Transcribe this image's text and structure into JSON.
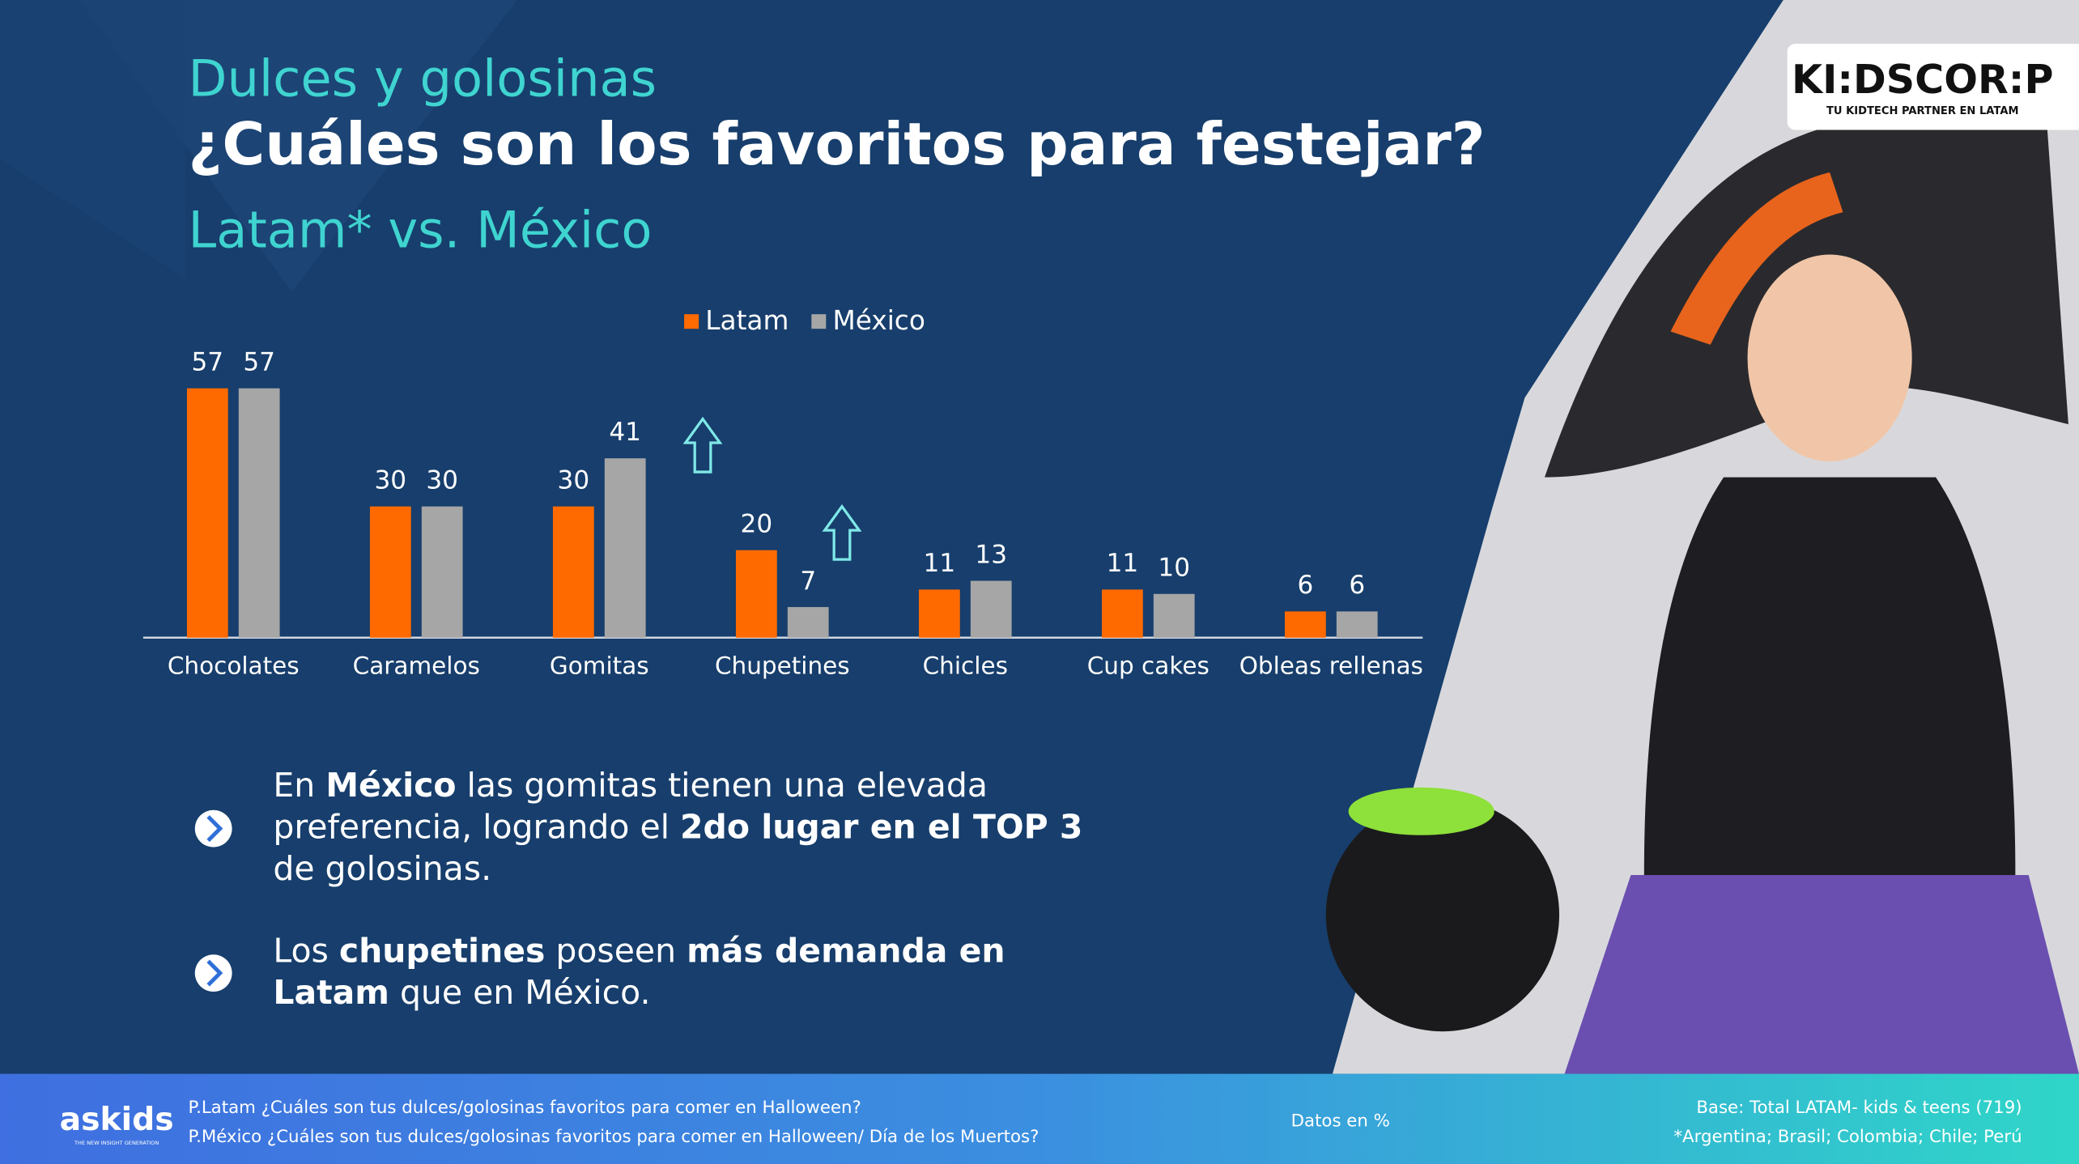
{
  "chart_data": {
    "type": "bar",
    "title": "Dulces y golosinas",
    "heading": "¿Cuáles son los favoritos para festejar?",
    "subtitle": "Latam* vs. México",
    "categories": [
      "Chocolates",
      "Caramelos",
      "Gomitas",
      "Chupetines",
      "Chicles",
      "Cup cakes",
      "Obleas rellenas"
    ],
    "series": [
      {
        "name": "Latam",
        "color": "#ff6a00",
        "values": [
          57,
          30,
          30,
          20,
          11,
          11,
          6
        ]
      },
      {
        "name": "México",
        "color": "#a6a6a6",
        "values": [
          57,
          30,
          41,
          7,
          13,
          10,
          6
        ]
      }
    ],
    "legend": "top"
  },
  "bullets": [
    [
      [
        {
          "text": "En ",
          "bold": false
        },
        {
          "text": "México",
          "bold": true
        },
        {
          "text": " las gomitas tienen una elevada",
          "bold": false
        }
      ],
      [
        {
          "text": "preferencia, logrando el ",
          "bold": false
        },
        {
          "text": "2do lugar en el TOP 3",
          "bold": true
        }
      ],
      [
        {
          "text": "de golosinas.",
          "bold": false
        }
      ]
    ],
    [
      [
        {
          "text": "Los ",
          "bold": false
        },
        {
          "text": "chupetines",
          "bold": true
        },
        {
          "text": " poseen ",
          "bold": false
        },
        {
          "text": "más demanda en",
          "bold": true
        }
      ],
      [
        {
          "text": "Latam",
          "bold": true
        },
        {
          "text": " que en México.",
          "bold": false
        }
      ]
    ]
  ],
  "footer": {
    "questions": [
      "P.Latam ¿Cuáles son tus dulces/golosinas favoritos para comer en Halloween?",
      "P.México ¿Cuáles son tus dulces/golosinas favoritos para comer en Halloween/ Día de los Muertos?"
    ],
    "units": "Datos en %",
    "base": [
      "Base: Total LATAM- kids & teens (719)",
      "*Argentina; Brasil; Colombia; Chile; Perú"
    ],
    "logo": "askids",
    "logo_tagline": "THE NEW INSIGHT GENERATION"
  },
  "brand": {
    "logo": "KI:DSCOR:P",
    "tagline": "TU KIDTECH PARTNER EN LATAM"
  }
}
